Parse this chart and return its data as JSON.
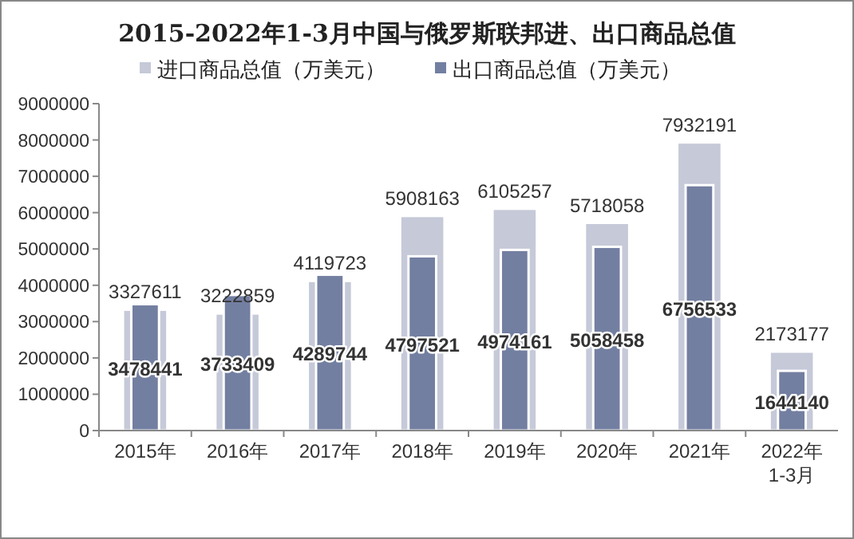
{
  "chart_data": {
    "type": "bar",
    "title": "2015-2022年1-3月中国与俄罗斯联邦进、出口商品总值",
    "categories": [
      "2015年",
      "2016年",
      "2017年",
      "2018年",
      "2019年",
      "2020年",
      "2021年",
      "2022年\n1-3月"
    ],
    "series": [
      {
        "name": "进口商品总值（万美元）",
        "color": "#c5c9d8",
        "values": [
          3327611,
          3222859,
          4119723,
          5908163,
          6105257,
          5718058,
          7932191,
          2173177
        ]
      },
      {
        "name": "出口商品总值（万美元）",
        "color": "#737fa1",
        "values": [
          3478441,
          3733409,
          4289744,
          4797521,
          4974161,
          5058458,
          6756533,
          1644140
        ]
      }
    ],
    "ylim": [
      0,
      9000000
    ],
    "yticks": [
      0,
      1000000,
      2000000,
      3000000,
      4000000,
      5000000,
      6000000,
      7000000,
      8000000,
      9000000
    ],
    "data_labels": true,
    "legend": "top",
    "grid": false
  }
}
